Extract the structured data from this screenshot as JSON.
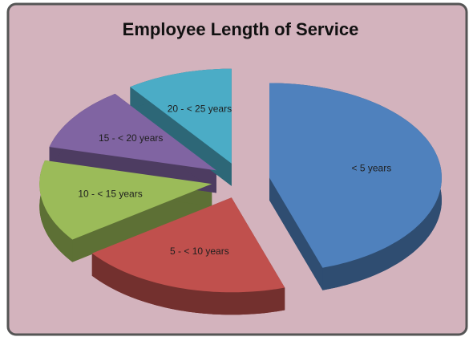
{
  "chart_data": {
    "type": "pie",
    "title": "Employee Length of Service",
    "categories": [
      "< 5 years",
      "5 - < 10 years",
      "10 - < 15 years",
      "15 - < 20 years",
      "20 - < 25 years"
    ],
    "values": [
      45,
      20,
      14,
      11,
      10
    ],
    "colors": [
      "#4f81bd",
      "#c0504d",
      "#9bbb59",
      "#8064a2",
      "#4bacc6"
    ]
  }
}
